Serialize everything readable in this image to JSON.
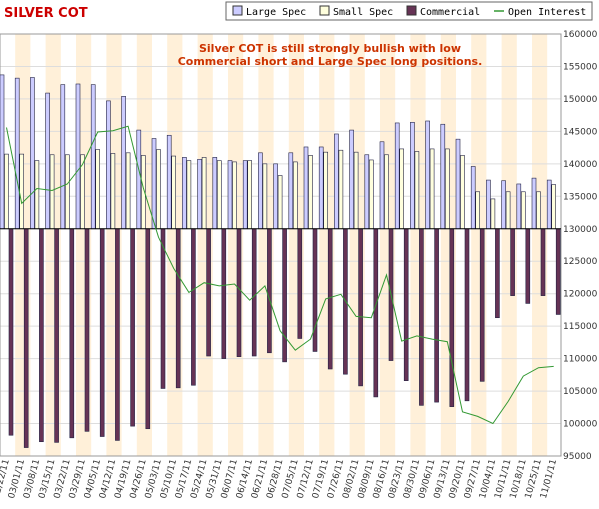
{
  "chart_data": {
    "type": "bar",
    "title": "SILVER COT",
    "annotation_lines": [
      "Silver COT is still strongly bullish with low",
      "Commercial short and Large Spec long positions."
    ],
    "legend_position": "top-right",
    "grid": true,
    "ylim": [
      95000,
      160000
    ],
    "y_ticks": [
      95000,
      100000,
      105000,
      110000,
      115000,
      120000,
      125000,
      130000,
      135000,
      140000,
      145000,
      150000,
      155000,
      160000
    ],
    "y_tick_labels": [
      "95000",
      "100000",
      "105000",
      "110000",
      "115000",
      "120000",
      "125000",
      "130000",
      "135000",
      "140000",
      "145000",
      "150000",
      "155000",
      "160000"
    ],
    "baseline": 130000,
    "categories": [
      "02/22/11",
      "03/01/11",
      "03/08/11",
      "03/15/11",
      "03/22/11",
      "03/29/11",
      "04/05/11",
      "04/12/11",
      "04/19/11",
      "04/26/11",
      "05/03/11",
      "05/10/11",
      "05/17/11",
      "05/24/11",
      "05/31/11",
      "06/07/11",
      "06/14/11",
      "06/21/11",
      "06/28/11",
      "07/05/11",
      "07/12/11",
      "07/19/11",
      "07/26/11",
      "08/02/11",
      "08/09/11",
      "08/16/11",
      "08/23/11",
      "08/30/11",
      "09/06/11",
      "09/13/11",
      "09/20/11",
      "09/27/11",
      "10/04/11",
      "10/11/11",
      "10/18/11",
      "10/25/11",
      "11/01/11"
    ],
    "series": [
      {
        "name": "Large Spec",
        "type": "bar",
        "color": "#ccccff",
        "values": [
          153700,
          153200,
          153300,
          150900,
          152200,
          152300,
          152200,
          149700,
          150400,
          145200,
          143900,
          144400,
          141000,
          140700,
          141000,
          140500,
          140500,
          141700,
          140000,
          141700,
          142600,
          142600,
          144600,
          145200,
          141400,
          143400,
          146300,
          146400,
          146600,
          146100,
          143800,
          139600,
          137500,
          137400,
          136900,
          137800,
          137500
        ]
      },
      {
        "name": "Small Spec",
        "type": "bar",
        "color": "#ffffdd",
        "values": [
          141500,
          141500,
          140500,
          141400,
          141400,
          141400,
          142200,
          141600,
          141700,
          141300,
          142200,
          141200,
          140500,
          141000,
          140500,
          140300,
          140500,
          140000,
          138200,
          140300,
          141300,
          141800,
          142100,
          141800,
          140600,
          141400,
          142300,
          141900,
          142300,
          142300,
          141300,
          135700,
          134600,
          135700,
          135700,
          135700,
          136800
        ]
      },
      {
        "name": "Commercial",
        "type": "bar",
        "color": "#663355",
        "values": [
          98200,
          96300,
          97200,
          97100,
          97800,
          98800,
          98000,
          97400,
          99600,
          99200,
          105400,
          105500,
          105900,
          110400,
          110000,
          110300,
          110400,
          110900,
          109500,
          113100,
          111100,
          108400,
          107600,
          105800,
          104100,
          109700,
          106600,
          102800,
          103300,
          102600,
          103500,
          106500,
          116300,
          119700,
          118500,
          119700,
          116800
        ]
      },
      {
        "name": "Open Interest",
        "type": "line",
        "color": "#339933",
        "values": [
          145600,
          133900,
          136200,
          135900,
          136900,
          139900,
          144900,
          145100,
          145800,
          136300,
          128700,
          123900,
          120200,
          121700,
          121200,
          121500,
          119000,
          121200,
          114300,
          111300,
          113000,
          119200,
          119900,
          116500,
          116300,
          122900,
          112700,
          113500,
          113000,
          112600,
          101800,
          101100,
          100000,
          103400,
          107300,
          108600,
          108800
        ]
      }
    ]
  }
}
